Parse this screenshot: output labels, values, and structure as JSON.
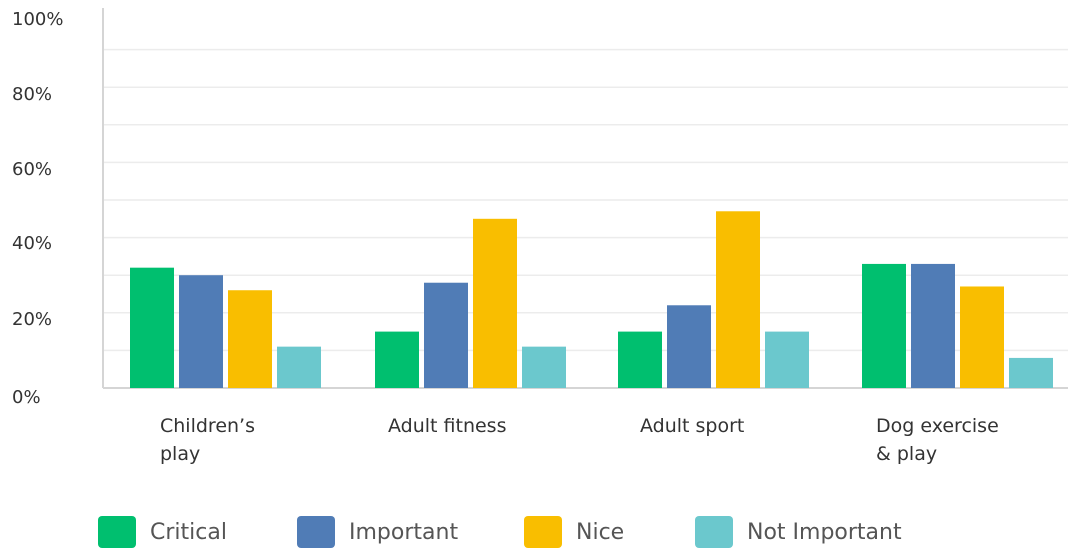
{
  "chart_data": {
    "type": "bar",
    "categories": [
      [
        "Children’s",
        "play"
      ],
      [
        "Adult fitness"
      ],
      [
        "Adult sport"
      ],
      [
        "Dog exercise",
        "& play"
      ]
    ],
    "series": [
      {
        "name": "Critical",
        "color": "#00bf6f",
        "values": [
          32,
          15,
          15,
          33
        ]
      },
      {
        "name": "Important",
        "color": "#507cb6",
        "values": [
          30,
          28,
          22,
          33
        ]
      },
      {
        "name": "Nice",
        "color": "#f9be00",
        "values": [
          26,
          45,
          47,
          27
        ]
      },
      {
        "name": "Not Important",
        "color": "#6bc8cd",
        "values": [
          11,
          11,
          15,
          8
        ]
      }
    ],
    "y_ticks": [
      "0%",
      "20%",
      "40%",
      "60%",
      "80%",
      "100%"
    ],
    "ylim": [
      0,
      100
    ],
    "grid": true,
    "minor_grid_step": 10,
    "legend_position": "bottom"
  }
}
